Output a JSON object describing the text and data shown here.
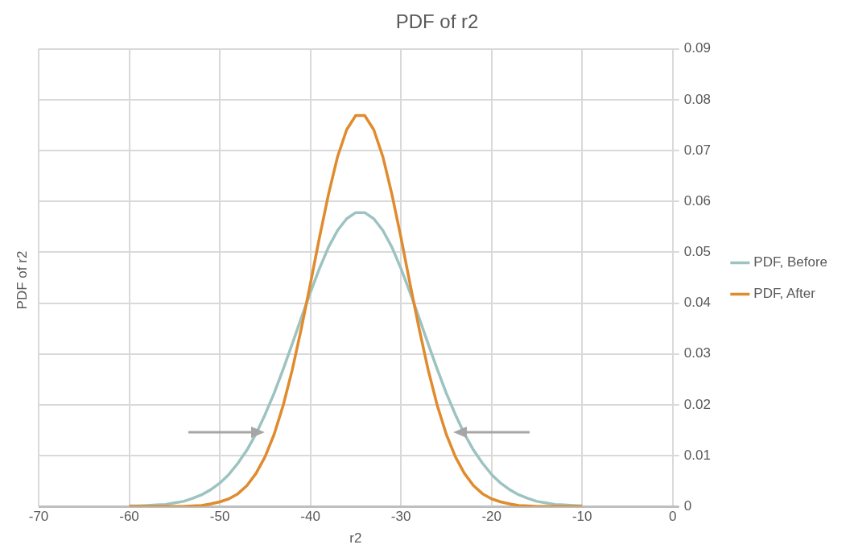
{
  "chart_data": {
    "type": "line",
    "title": "PDF of r2",
    "xlabel": "r2",
    "ylabel": "PDF of r2",
    "x": [
      -60,
      -59,
      -58,
      -57,
      -56,
      -55,
      -54,
      -53,
      -52,
      -51,
      -50,
      -49,
      -48,
      -47,
      -46,
      -45,
      -44,
      -43,
      -42,
      -41,
      -40,
      -39,
      -38,
      -37,
      -36,
      -35,
      -34,
      -33,
      -32,
      -31,
      -30,
      -29,
      -28,
      -27,
      -26,
      -25,
      -24,
      -23,
      -22,
      -21,
      -20,
      -19,
      -18,
      -17,
      -16,
      -15,
      -14,
      -13,
      -12,
      -11,
      -10
    ],
    "series": [
      {
        "name": "PDF, Before",
        "color": "#9dc3c1",
        "values": [
          0.0001,
          0.0001,
          0.0002,
          0.0003,
          0.0004,
          0.0007,
          0.001,
          0.0016,
          0.0023,
          0.0033,
          0.0046,
          0.0063,
          0.0085,
          0.0111,
          0.0143,
          0.0181,
          0.0223,
          0.027,
          0.032,
          0.0371,
          0.0421,
          0.0468,
          0.051,
          0.0543,
          0.0566,
          0.0578,
          0.0578,
          0.0566,
          0.0543,
          0.051,
          0.0468,
          0.0421,
          0.0371,
          0.032,
          0.027,
          0.0223,
          0.0181,
          0.0143,
          0.0111,
          0.0085,
          0.0063,
          0.0046,
          0.0033,
          0.0023,
          0.0016,
          0.001,
          0.0007,
          0.0004,
          0.0003,
          0.0002,
          0.0001
        ]
      },
      {
        "name": "PDF, After",
        "color": "#e08b2e",
        "values": [
          0,
          0,
          0,
          0,
          0,
          0,
          0,
          0.0001,
          0.0002,
          0.0005,
          0.0009,
          0.0015,
          0.0025,
          0.0041,
          0.0065,
          0.0098,
          0.0142,
          0.0199,
          0.0269,
          0.035,
          0.0438,
          0.0529,
          0.0614,
          0.0688,
          0.0741,
          0.0769,
          0.0769,
          0.0741,
          0.0688,
          0.0614,
          0.0529,
          0.0438,
          0.035,
          0.0269,
          0.0199,
          0.0142,
          0.0098,
          0.0065,
          0.0041,
          0.0025,
          0.0015,
          0.0009,
          0.0005,
          0.0002,
          0.0001,
          0,
          0,
          0,
          0,
          0,
          0
        ]
      }
    ],
    "xlim": [
      -70,
      0
    ],
    "xticks": [
      -70,
      -60,
      -50,
      -40,
      -30,
      -20,
      -10,
      0
    ],
    "ylim": [
      0,
      0.09
    ],
    "yticks": [
      0,
      0.01,
      0.02,
      0.03,
      0.04,
      0.05,
      0.06,
      0.07,
      0.08,
      0.09
    ],
    "grid": true,
    "legend": "right",
    "marker": "none",
    "line_style": "solid"
  }
}
